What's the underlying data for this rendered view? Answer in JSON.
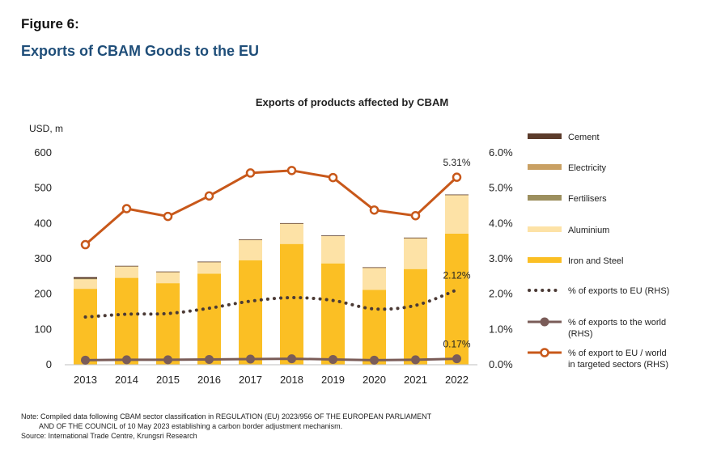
{
  "figure_label": "Figure 6:",
  "figure_title": "Exports of CBAM Goods to the EU",
  "notes": {
    "line1": "Note: Compiled data following CBAM sector classification in REGULATION (EU) 2023/956 OF THE EUROPEAN PARLIAMENT",
    "line2": "AND OF THE COUNCIL of 10 May 2023 establishing a carbon border adjustment mechanism.",
    "line3": "Source: International Trade Centre, Krungsri Research"
  },
  "chart_data": {
    "type": "bar",
    "title": "Exports of products affected by CBAM",
    "ylabel": "USD, m",
    "categories": [
      "2013",
      "2014",
      "2015",
      "2016",
      "2017",
      "2018",
      "2019",
      "2020",
      "2021",
      "2022"
    ],
    "ylim": [
      0,
      600
    ],
    "y_ticks": [
      0,
      100,
      200,
      300,
      400,
      500,
      600
    ],
    "y_tick_labels": [
      "0",
      "100",
      "200",
      "300",
      "400",
      "500",
      "600"
    ],
    "y2lim": [
      0,
      6
    ],
    "y2_ticks": [
      0,
      1,
      2,
      3,
      4,
      5,
      6
    ],
    "y2_tick_labels": [
      "0.0%",
      "1.0%",
      "2.0%",
      "3.0%",
      "4.0%",
      "5.0%",
      "6.0%"
    ],
    "stacked_series": [
      {
        "name": "Iron and Steel",
        "color": "#fbbf24",
        "values": [
          215,
          246,
          231,
          258,
          296,
          342,
          287,
          212,
          271,
          371
        ]
      },
      {
        "name": "Aluminium",
        "color": "#fde2a6",
        "values": [
          28,
          33,
          32,
          33,
          58,
          58,
          78,
          63,
          88,
          110
        ]
      },
      {
        "name": "Fertilisers",
        "color": "#9c8f5e",
        "values": [
          1,
          0,
          0,
          0,
          0,
          0,
          0,
          0,
          0,
          0
        ]
      },
      {
        "name": "Electricity",
        "color": "#c9a063",
        "values": [
          0,
          0,
          0,
          0,
          0,
          0,
          0,
          0,
          0,
          0
        ]
      },
      {
        "name": "Cement",
        "color": "#5b3b2b",
        "values": [
          4,
          1,
          1,
          1,
          1,
          1,
          1,
          1,
          1,
          1
        ]
      }
    ],
    "line_series": [
      {
        "name": "% of exports to EU (RHS)",
        "style": "dotted",
        "color": "#4b3a35",
        "values": [
          1.35,
          1.43,
          1.45,
          1.6,
          1.8,
          1.9,
          1.82,
          1.58,
          1.68,
          2.12
        ]
      },
      {
        "name": "% of exports to the world (RHS)",
        "style": "solid-filled-markers",
        "color": "#7a5c58",
        "values": [
          0.13,
          0.14,
          0.14,
          0.15,
          0.16,
          0.17,
          0.15,
          0.13,
          0.14,
          0.17
        ]
      },
      {
        "name": "% of export to EU / world in targeted sectors (RHS)",
        "style": "solid-open-markers",
        "color": "#c8581a",
        "values": [
          3.4,
          4.42,
          4.2,
          4.78,
          5.43,
          5.5,
          5.3,
          4.38,
          4.22,
          5.31
        ]
      }
    ],
    "data_labels": [
      {
        "text": "5.31%",
        "series": "% of export to EU / world in targeted sectors (RHS)",
        "category": "2022"
      },
      {
        "text": "2.12%",
        "series": "% of exports to EU (RHS)",
        "category": "2022"
      },
      {
        "text": "0.17%",
        "series": "% of exports to the world (RHS)",
        "category": "2022"
      }
    ],
    "legend": {
      "placement": "right",
      "items": [
        {
          "label": "Cement",
          "kind": "swatch",
          "color": "#5b3b2b"
        },
        {
          "label": "Electricity",
          "kind": "swatch",
          "color": "#c9a063"
        },
        {
          "label": "Fertilisers",
          "kind": "swatch",
          "color": "#9c8f5e"
        },
        {
          "label": "Aluminium",
          "kind": "swatch",
          "color": "#fde2a6"
        },
        {
          "label": "Iron and Steel",
          "kind": "swatch",
          "color": "#fbbf24"
        },
        {
          "label": "% of exports to EU (RHS)",
          "kind": "dotted",
          "color": "#4b3a35"
        },
        {
          "label": "% of exports to the world",
          "label_line2": "(RHS)",
          "kind": "filled-marker",
          "color": "#7a5c58"
        },
        {
          "label": "% of export to EU / world",
          "label_line2": "in targeted sectors  (RHS)",
          "kind": "open-marker",
          "color": "#c8581a"
        }
      ]
    },
    "grid": false
  }
}
